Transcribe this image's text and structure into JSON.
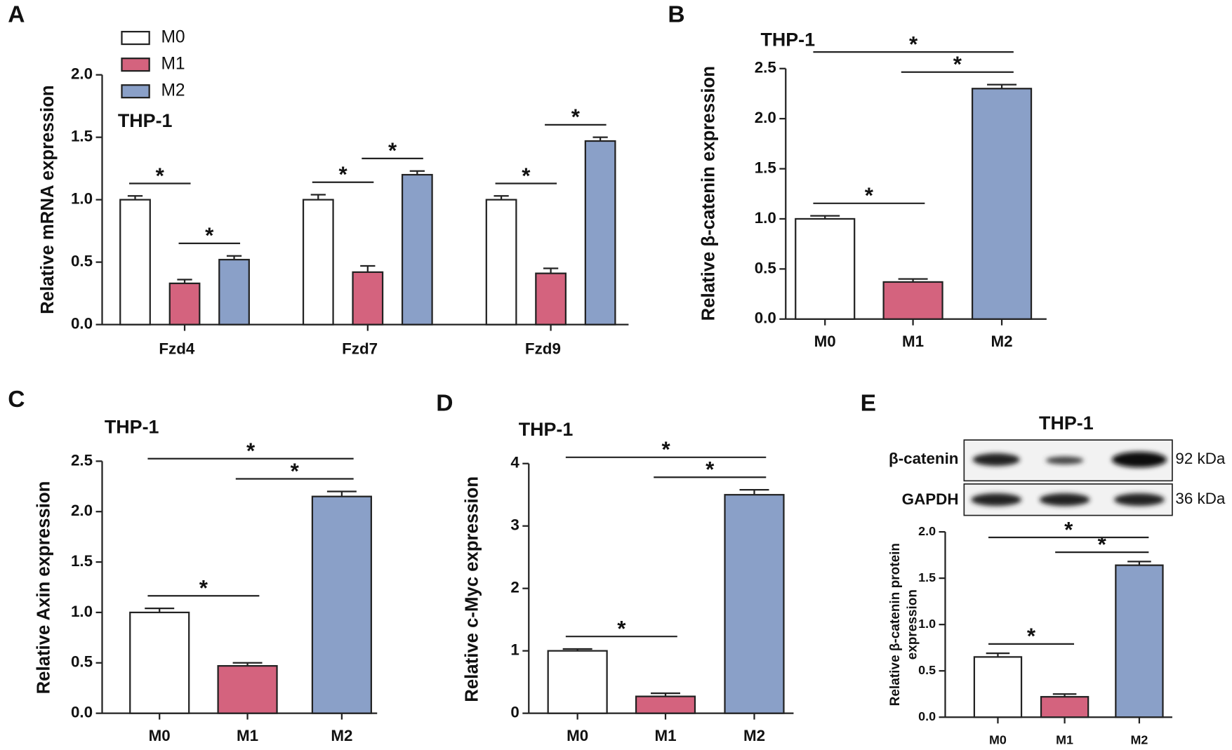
{
  "chart_data": [
    {
      "panel": "A",
      "type": "bar",
      "title": "THP-1",
      "y_label": "Relative mRNA expression",
      "categories": [
        "Fzd4",
        "Fzd7",
        "Fzd9"
      ],
      "series": [
        {
          "name": "M0",
          "color": "#ffffff",
          "values": [
            1.0,
            1.0,
            1.0
          ],
          "errors": [
            0.03,
            0.04,
            0.03
          ]
        },
        {
          "name": "M1",
          "color": "#d4637e",
          "values": [
            0.33,
            0.42,
            0.41
          ],
          "errors": [
            0.03,
            0.05,
            0.04
          ]
        },
        {
          "name": "M2",
          "color": "#8aa0c8",
          "values": [
            0.52,
            1.2,
            1.47
          ],
          "errors": [
            0.03,
            0.03,
            0.03
          ]
        }
      ],
      "ylim": [
        0,
        2
      ],
      "yticks": [
        {
          "value": 0,
          "label": "0.0"
        },
        0.5,
        {
          "value": 1,
          "label": "1.0"
        },
        1.5,
        {
          "value": 2,
          "label": "2.0"
        }
      ],
      "annotations": [
        {
          "text": "*",
          "category": "Fzd4",
          "between": [
            "M0",
            "M1"
          ]
        },
        {
          "text": "*",
          "category": "Fzd4",
          "between": [
            "M1",
            "M2"
          ]
        },
        {
          "text": "*",
          "category": "Fzd7",
          "between": [
            "M0",
            "M1"
          ]
        },
        {
          "text": "*",
          "category": "Fzd7",
          "between": [
            "M1",
            "M2"
          ]
        },
        {
          "text": "*",
          "category": "Fzd9",
          "between": [
            "M0",
            "M1"
          ]
        },
        {
          "text": "*",
          "category": "Fzd9",
          "between": [
            "M1",
            "M2"
          ]
        }
      ]
    },
    {
      "panel": "B",
      "type": "bar",
      "title": "THP-1",
      "y_label": "Relative β-catenin expression",
      "categories": [
        "M0",
        "M1",
        "M2"
      ],
      "values": [
        1.0,
        0.37,
        2.3
      ],
      "errors": [
        0.03,
        0.03,
        0.04
      ],
      "colors": [
        "#ffffff",
        "#d4637e",
        "#8aa0c8"
      ],
      "ylim": [
        0,
        2.5
      ],
      "yticks": [
        {
          "value": 0,
          "label": "0.0"
        },
        0.5,
        {
          "value": 1,
          "label": "1.0"
        },
        1.5,
        {
          "value": 2,
          "label": "2.0"
        },
        2.5
      ],
      "annotations": [
        {
          "text": "*",
          "between": [
            "M0",
            "M1"
          ]
        },
        {
          "text": "*",
          "between": [
            "M1",
            "M2"
          ]
        },
        {
          "text": "*",
          "between": [
            "M0",
            "M2"
          ]
        }
      ]
    },
    {
      "panel": "C",
      "type": "bar",
      "title": "THP-1",
      "y_label": "Relative Axin expression",
      "categories": [
        "M0",
        "M1",
        "M2"
      ],
      "values": [
        1.0,
        0.47,
        2.15
      ],
      "errors": [
        0.04,
        0.03,
        0.05
      ],
      "colors": [
        "#ffffff",
        "#d4637e",
        "#8aa0c8"
      ],
      "ylim": [
        0,
        2.5
      ],
      "yticks": [
        {
          "value": 0,
          "label": "0.0"
        },
        0.5,
        {
          "value": 1,
          "label": "1.0"
        },
        1.5,
        {
          "value": 2,
          "label": "2.0"
        },
        2.5
      ],
      "annotations": [
        {
          "text": "*",
          "between": [
            "M0",
            "M1"
          ]
        },
        {
          "text": "*",
          "between": [
            "M1",
            "M2"
          ]
        },
        {
          "text": "*",
          "between": [
            "M0",
            "M2"
          ]
        }
      ]
    },
    {
      "panel": "D",
      "type": "bar",
      "title": "THP-1",
      "y_label": "Relative c-Myc expression",
      "categories": [
        "M0",
        "M1",
        "M2"
      ],
      "values": [
        1.0,
        0.27,
        3.5
      ],
      "errors": [
        0.03,
        0.05,
        0.08
      ],
      "colors": [
        "#ffffff",
        "#d4637e",
        "#8aa0c8"
      ],
      "ylim": [
        0,
        4
      ],
      "yticks": [
        0,
        1,
        2,
        3,
        4
      ],
      "annotations": [
        {
          "text": "*",
          "between": [
            "M0",
            "M1"
          ]
        },
        {
          "text": "*",
          "between": [
            "M1",
            "M2"
          ]
        },
        {
          "text": "*",
          "between": [
            "M0",
            "M2"
          ]
        }
      ]
    },
    {
      "panel": "E",
      "type": "bar",
      "title": "THP-1",
      "y_label": [
        "Relative β-catenin protein",
        "expression"
      ],
      "blot": [
        {
          "label": "β-catenin",
          "size": "92 kDa"
        },
        {
          "label": "GAPDH",
          "size": "36 kDa"
        }
      ],
      "categories": [
        "M0",
        "M1",
        "M2"
      ],
      "values": [
        0.65,
        0.22,
        1.64
      ],
      "errors": [
        0.04,
        0.03,
        0.04
      ],
      "colors": [
        "#ffffff",
        "#d4637e",
        "#8aa0c8"
      ],
      "ylim": [
        0,
        2
      ],
      "yticks": [
        {
          "value": 0,
          "label": "0.0"
        },
        0.5,
        {
          "value": 1,
          "label": "1.0"
        },
        1.5,
        {
          "value": 2,
          "label": "2.0"
        }
      ],
      "annotations": [
        {
          "text": "*",
          "between": [
            "M0",
            "M1"
          ]
        },
        {
          "text": "*",
          "between": [
            "M1",
            "M2"
          ]
        },
        {
          "text": "*",
          "between": [
            "M0",
            "M2"
          ]
        }
      ]
    }
  ]
}
